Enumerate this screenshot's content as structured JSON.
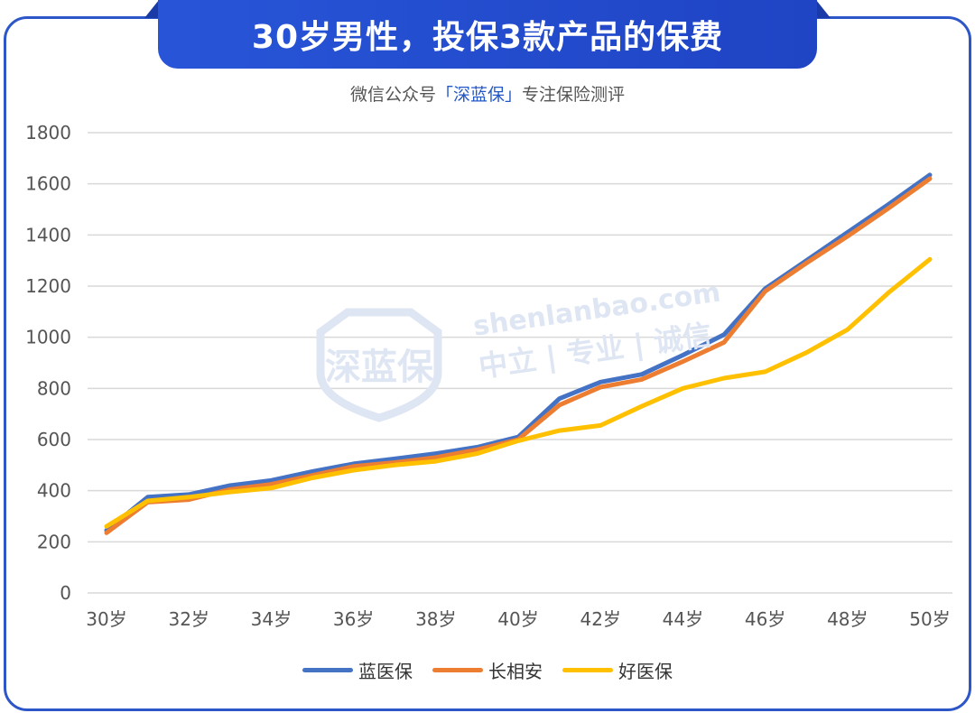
{
  "title": "30岁男性，投保3款产品的保费",
  "subtitle": {
    "prefix": "微信公众号",
    "open_bracket": "「",
    "brand": "深蓝保",
    "close_bracket": "」",
    "suffix": "专注保险测评"
  },
  "watermark": {
    "logo_text": "深蓝保",
    "url": "shenlanbao.com",
    "tagline": "中立 | 专业 | 诚信"
  },
  "colors": {
    "accent": "#2d56c8",
    "series_blue": "#4472c4",
    "series_orange": "#ed7d31",
    "series_yellow": "#ffc000"
  },
  "chart_data": {
    "type": "line",
    "title": "",
    "xlabel": "",
    "ylabel": "",
    "x": [
      "30岁",
      "31岁",
      "32岁",
      "33岁",
      "34岁",
      "35岁",
      "36岁",
      "37岁",
      "38岁",
      "39岁",
      "40岁",
      "41岁",
      "42岁",
      "43岁",
      "44岁",
      "45岁",
      "46岁",
      "47岁",
      "48岁",
      "49岁",
      "50岁"
    ],
    "x_tick_labels": [
      "30岁",
      "32岁",
      "34岁",
      "36岁",
      "38岁",
      "40岁",
      "42岁",
      "44岁",
      "46岁",
      "48岁",
      "50岁"
    ],
    "y_tick_labels": [
      "0",
      "200",
      "400",
      "600",
      "800",
      "1000",
      "1200",
      "1400",
      "1600",
      "1800"
    ],
    "ylim": [
      0,
      1800
    ],
    "grid": true,
    "legend_position": "bottom",
    "series": [
      {
        "name": "蓝医保",
        "color": "#4472c4",
        "values": [
          245,
          375,
          385,
          420,
          440,
          475,
          505,
          525,
          545,
          570,
          610,
          760,
          825,
          855,
          930,
          1010,
          1190,
          1300,
          1410,
          1520,
          1635
        ]
      },
      {
        "name": "长相安",
        "color": "#ed7d31",
        "values": [
          235,
          355,
          365,
          405,
          425,
          460,
          495,
          510,
          530,
          560,
          600,
          735,
          805,
          835,
          905,
          980,
          1180,
          1290,
          1395,
          1505,
          1620
        ]
      },
      {
        "name": "好医保",
        "color": "#ffc000",
        "values": [
          260,
          360,
          375,
          395,
          410,
          450,
          480,
          500,
          515,
          545,
          595,
          635,
          655,
          730,
          800,
          840,
          865,
          940,
          1030,
          1175,
          1305
        ]
      }
    ]
  }
}
